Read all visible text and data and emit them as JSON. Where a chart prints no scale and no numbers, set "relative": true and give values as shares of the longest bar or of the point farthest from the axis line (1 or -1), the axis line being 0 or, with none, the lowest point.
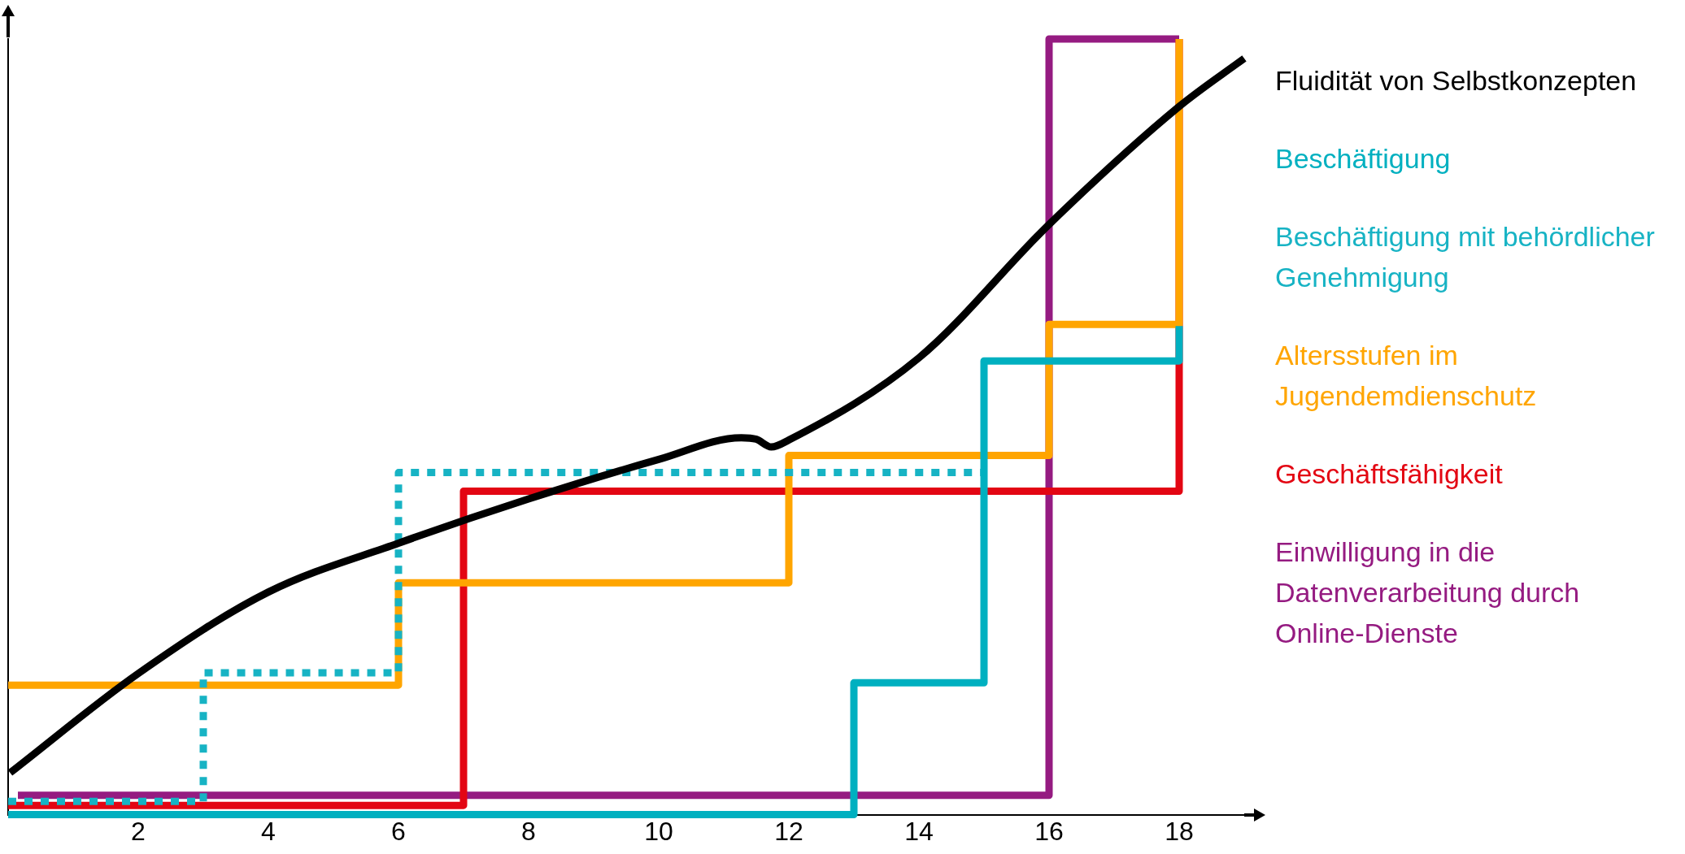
{
  "chart_data": {
    "type": "line",
    "relative": true,
    "xlim": [
      0,
      19
    ],
    "xticks": [
      2,
      4,
      6,
      8,
      10,
      12,
      14,
      16,
      18
    ],
    "grid": false,
    "legend": "right",
    "line_style": "solid",
    "marker": "none",
    "series": [
      {
        "name": "Fluidität von Selbstkonzepten",
        "color": "#000000",
        "x": [
          0.03,
          2,
          4,
          6,
          8,
          10,
          11.27,
          11.5,
          11.73,
          12,
          14,
          16,
          18,
          19
        ],
        "values": [
          0.054,
          0.182,
          0.287,
          0.35,
          0.407,
          0.458,
          0.486,
          0.484,
          0.474,
          0.483,
          0.589,
          0.761,
          0.913,
          0.975
        ]
      },
      {
        "name": "Beschäftigung",
        "type": "step",
        "color": "#00b0c0",
        "x": [
          0,
          13,
          15,
          18
        ],
        "values": [
          0,
          0.17,
          0.585,
          0.63
        ]
      },
      {
        "name": "Beschäftigung mit behördlicher Genehmigung",
        "type": "step",
        "color": "#17b3c4",
        "line_style": "dotted",
        "x": [
          0,
          3,
          6,
          15
        ],
        "values": [
          0.017,
          0.183,
          0.441,
          0.441
        ]
      },
      {
        "name": "Altersstufen im Jugendemdienschutz",
        "type": "step",
        "color": "#ffa500",
        "x": [
          0,
          6,
          12,
          16,
          18
        ],
        "values": [
          0.167,
          0.299,
          0.463,
          0.632,
          1
        ]
      },
      {
        "name": "Geschäftsfähigkeit",
        "type": "step",
        "color": "#e30613",
        "x": [
          0,
          7,
          18
        ],
        "values": [
          0.012,
          0.417,
          1
        ]
      },
      {
        "name": "Einwilligung in die Datenverarbeitung durch Online-Dienste",
        "type": "step",
        "color": "#951b81",
        "x": [
          0.15,
          16,
          18
        ],
        "values": [
          0.025,
          1,
          1
        ]
      }
    ]
  }
}
